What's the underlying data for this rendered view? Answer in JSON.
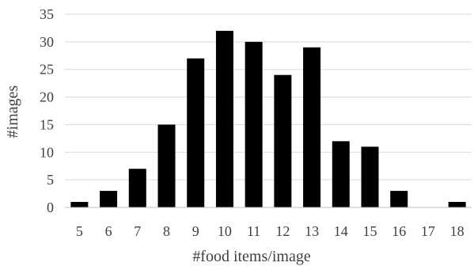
{
  "chart_data": {
    "type": "bar",
    "title": "",
    "xlabel": "#food items/image",
    "ylabel": "#images",
    "categories": [
      "5",
      "6",
      "7",
      "8",
      "9",
      "10",
      "11",
      "12",
      "13",
      "14",
      "15",
      "16",
      "17",
      "18"
    ],
    "values": [
      1,
      3,
      7,
      15,
      27,
      32,
      30,
      24,
      29,
      12,
      11,
      3,
      0,
      1
    ],
    "ylim": [
      0,
      35
    ],
    "yticks": [
      0,
      5,
      10,
      15,
      20,
      25,
      30,
      35
    ],
    "grid": "horizontal",
    "legend": "none",
    "colors": {
      "bar": "#000000",
      "grid": "#d9d9d9",
      "axis": "#bfbfbf",
      "text": "#404040"
    }
  }
}
